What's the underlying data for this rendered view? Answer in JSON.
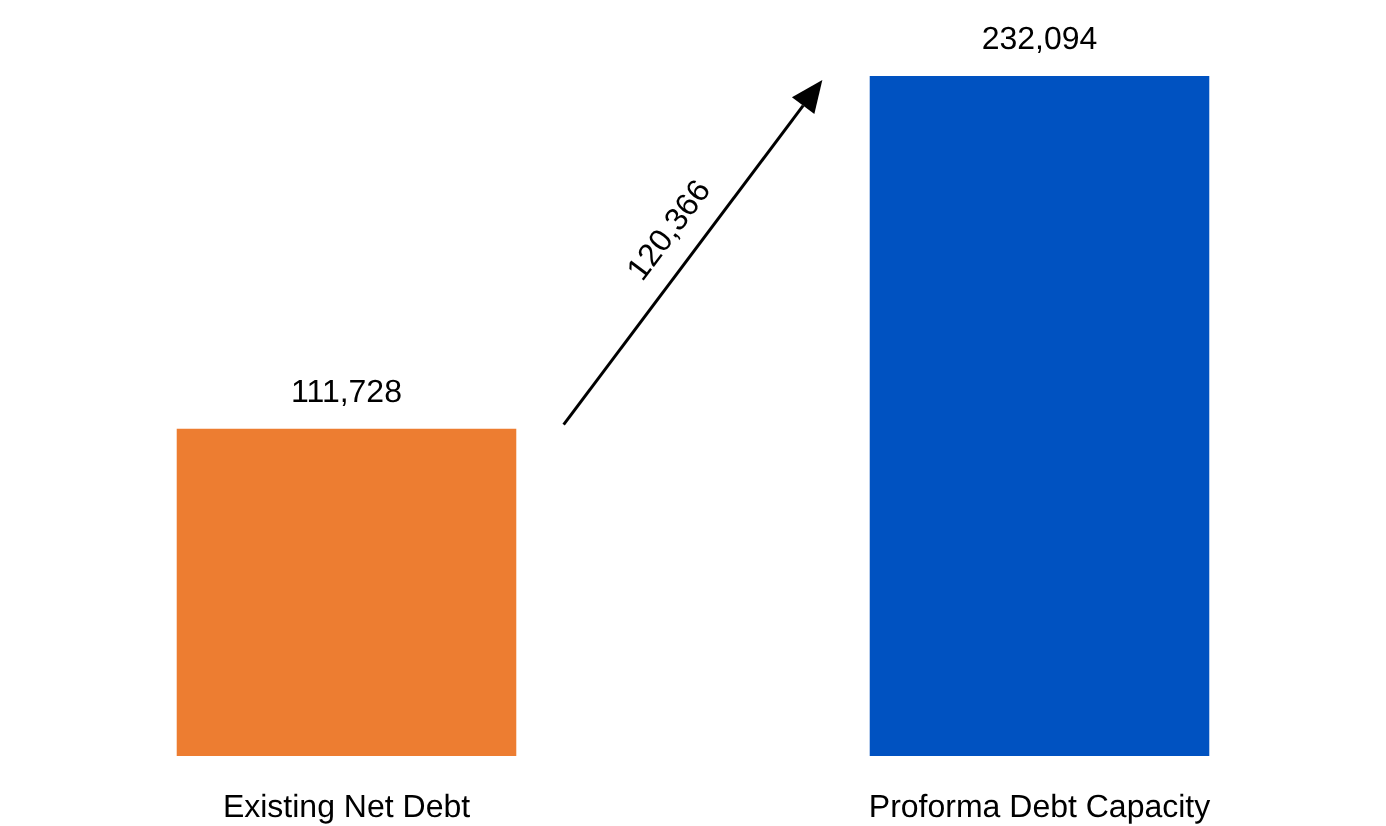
{
  "chart_data": {
    "type": "bar",
    "categories": [
      "Existing Net Debt",
      "Proforma Debt Capacity"
    ],
    "values": [
      111728,
      232094
    ],
    "colors": [
      "#ed7d31",
      "#0052c1"
    ],
    "value_labels": [
      "111,728",
      "232,094"
    ],
    "annotations": [
      "120,366"
    ]
  }
}
